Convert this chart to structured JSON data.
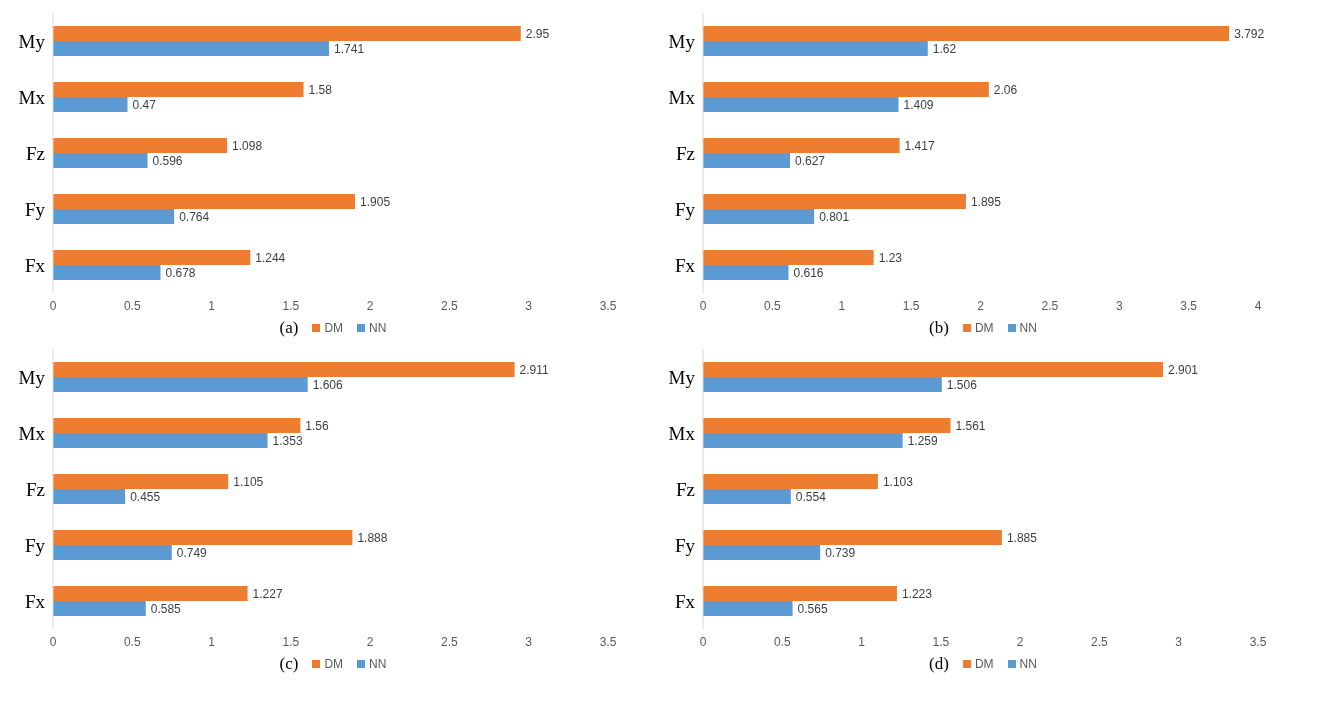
{
  "chart_data": [
    {
      "type": "bar",
      "orientation": "horizontal",
      "xlabel": "(a)",
      "categories": [
        "My",
        "Mx",
        "Fz",
        "Fy",
        "Fx"
      ],
      "series": [
        {
          "name": "DM",
          "color": "#ed7d31",
          "values": [
            2.95,
            1.58,
            1.098,
            1.905,
            1.244
          ]
        },
        {
          "name": "NN",
          "color": "#5b9bd5",
          "values": [
            1.741,
            0.47,
            0.596,
            0.764,
            0.678
          ]
        }
      ],
      "xlim": [
        0,
        3.5
      ],
      "xticks": [
        0,
        0.5,
        1,
        1.5,
        2,
        2.5,
        3,
        3.5
      ],
      "data_labels": true,
      "grid": false,
      "legend": "bottom"
    },
    {
      "type": "bar",
      "orientation": "horizontal",
      "xlabel": "(b)",
      "categories": [
        "My",
        "Mx",
        "Fz",
        "Fy",
        "Fx"
      ],
      "series": [
        {
          "name": "DM",
          "color": "#ed7d31",
          "values": [
            3.792,
            2.06,
            1.417,
            1.895,
            1.23
          ]
        },
        {
          "name": "NN",
          "color": "#5b9bd5",
          "values": [
            1.62,
            1.409,
            0.627,
            0.801,
            0.616
          ]
        }
      ],
      "xlim": [
        0,
        4
      ],
      "xticks": [
        0,
        0.5,
        1,
        1.5,
        2,
        2.5,
        3,
        3.5,
        4
      ],
      "data_labels": true,
      "grid": false,
      "legend": "bottom"
    },
    {
      "type": "bar",
      "orientation": "horizontal",
      "xlabel": "(c)",
      "categories": [
        "My",
        "Mx",
        "Fz",
        "Fy",
        "Fx"
      ],
      "series": [
        {
          "name": "DM",
          "color": "#ed7d31",
          "values": [
            2.911,
            1.56,
            1.105,
            1.888,
            1.227
          ]
        },
        {
          "name": "NN",
          "color": "#5b9bd5",
          "values": [
            1.606,
            1.353,
            0.455,
            0.749,
            0.585
          ]
        }
      ],
      "xlim": [
        0,
        3.5
      ],
      "xticks": [
        0,
        0.5,
        1,
        1.5,
        2,
        2.5,
        3,
        3.5
      ],
      "data_labels": true,
      "grid": false,
      "legend": "bottom"
    },
    {
      "type": "bar",
      "orientation": "horizontal",
      "xlabel": "(d)",
      "categories": [
        "My",
        "Mx",
        "Fz",
        "Fy",
        "Fx"
      ],
      "series": [
        {
          "name": "DM",
          "color": "#ed7d31",
          "values": [
            2.901,
            1.561,
            1.103,
            1.885,
            1.223
          ]
        },
        {
          "name": "NN",
          "color": "#5b9bd5",
          "values": [
            1.506,
            1.259,
            0.554,
            0.739,
            0.565
          ]
        }
      ],
      "xlim": [
        0,
        3.5
      ],
      "xticks": [
        0,
        0.5,
        1,
        1.5,
        2,
        2.5,
        3,
        3.5
      ],
      "data_labels": true,
      "grid": false,
      "legend": "bottom"
    }
  ]
}
